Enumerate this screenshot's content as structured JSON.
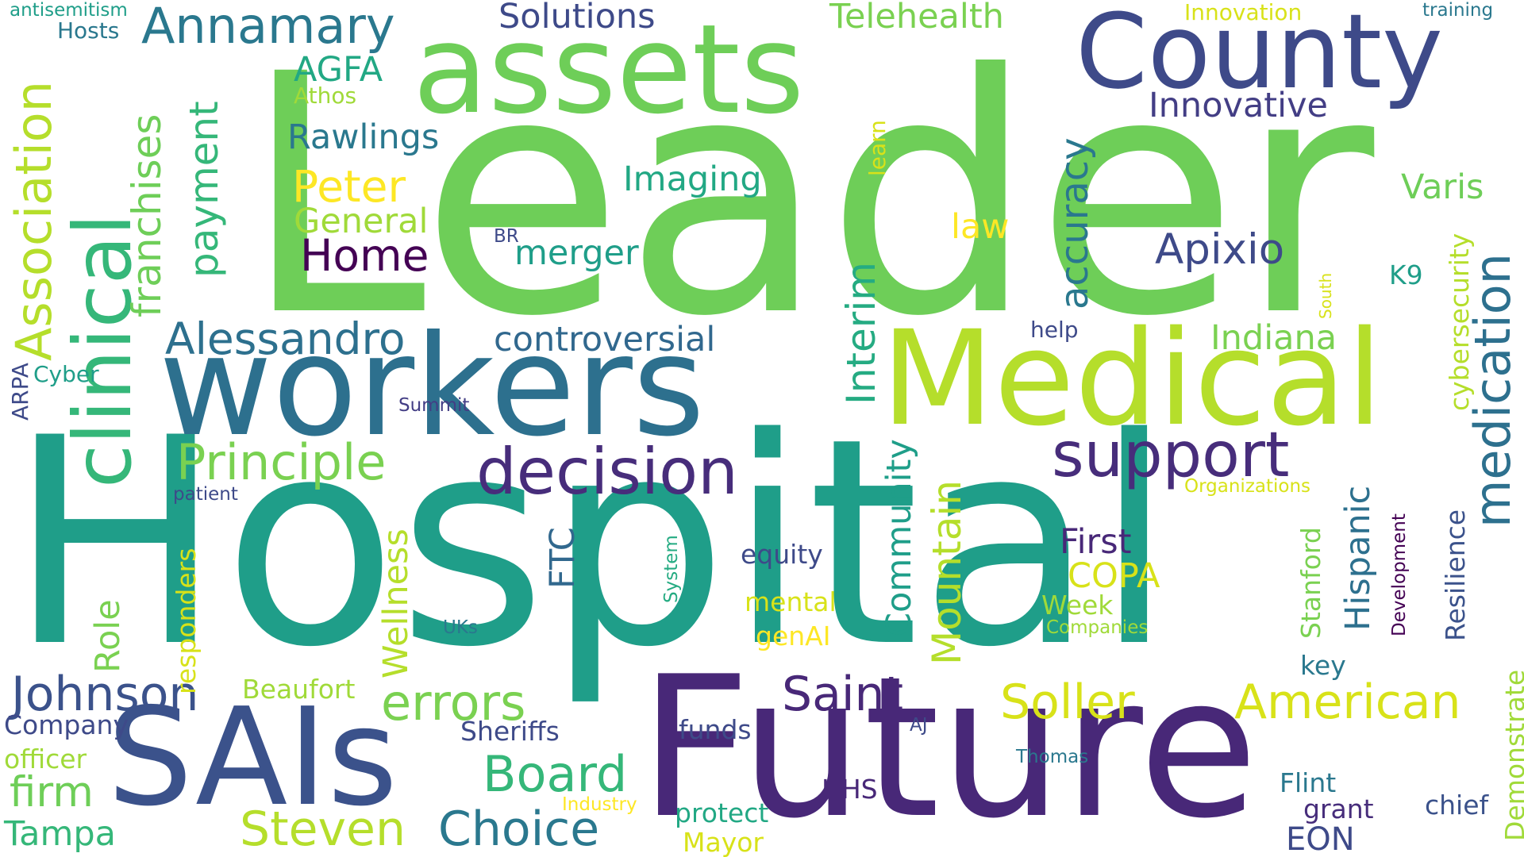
{
  "words": [
    {
      "text": "Leader",
      "color": "#6ece58",
      "vertical": false
    },
    {
      "text": "Hospital",
      "color": "#1f9e89",
      "vertical": false
    },
    {
      "text": "Future",
      "color": "#482878",
      "vertical": false
    },
    {
      "text": "workers",
      "color": "#2d708e",
      "vertical": false
    },
    {
      "text": "Medical",
      "color": "#b5de2b",
      "vertical": false
    },
    {
      "text": "assets",
      "color": "#6ece58",
      "vertical": false
    },
    {
      "text": "County",
      "color": "#3e4a89",
      "vertical": false
    },
    {
      "text": "SAIs",
      "color": "#3b528b",
      "vertical": false
    },
    {
      "text": "clinical",
      "color": "#35b779",
      "vertical": true
    },
    {
      "text": "decision",
      "color": "#472d7b",
      "vertical": false
    },
    {
      "text": "support",
      "color": "#472d7b",
      "vertical": false
    },
    {
      "text": "Annamary",
      "color": "#2a788e",
      "vertical": false
    },
    {
      "text": "Association",
      "color": "#b5de2b",
      "vertical": true
    },
    {
      "text": "franchises",
      "color": "#6ece58",
      "vertical": true
    },
    {
      "text": "payment",
      "color": "#35b779",
      "vertical": true
    },
    {
      "text": "Principle",
      "color": "#7ad151",
      "vertical": false
    },
    {
      "text": "Alessandro",
      "color": "#2d708e",
      "vertical": false
    },
    {
      "text": "controversial",
      "color": "#31688e",
      "vertical": false
    },
    {
      "text": "Johnson",
      "color": "#3b528b",
      "vertical": false
    },
    {
      "text": "errors",
      "color": "#7ad151",
      "vertical": false
    },
    {
      "text": "Board",
      "color": "#35b779",
      "vertical": false
    },
    {
      "text": "Choice",
      "color": "#2a788e",
      "vertical": false
    },
    {
      "text": "Steven",
      "color": "#b5de2b",
      "vertical": false
    },
    {
      "text": "Saint",
      "color": "#482878",
      "vertical": false
    },
    {
      "text": "Soller",
      "color": "#d8e219",
      "vertical": false
    },
    {
      "text": "American",
      "color": "#d8e219",
      "vertical": false
    },
    {
      "text": "medication",
      "color": "#2d708e",
      "vertical": true
    },
    {
      "text": "accuracy",
      "color": "#2a788e",
      "vertical": true
    },
    {
      "text": "Interim",
      "color": "#25ab82",
      "vertical": true
    },
    {
      "text": "Apixio",
      "color": "#3e4a89",
      "vertical": false
    },
    {
      "text": "Indiana",
      "color": "#7ad151",
      "vertical": false
    },
    {
      "text": "Innovative",
      "color": "#433e85",
      "vertical": false
    },
    {
      "text": "Peter",
      "color": "#fde725",
      "vertical": false
    },
    {
      "text": "Home",
      "color": "#440154",
      "vertical": false
    },
    {
      "text": "General",
      "color": "#a0da39",
      "vertical": false
    },
    {
      "text": "Rawlings",
      "color": "#2a788e",
      "vertical": false
    },
    {
      "text": "AGFA",
      "color": "#22a884",
      "vertical": false
    },
    {
      "text": "Imaging",
      "color": "#22a884",
      "vertical": false
    },
    {
      "text": "merger",
      "color": "#1f9e89",
      "vertical": false
    },
    {
      "text": "Solutions",
      "color": "#3e4a89",
      "vertical": false
    },
    {
      "text": "Telehealth",
      "color": "#7ad151",
      "vertical": false
    },
    {
      "text": "Mountain",
      "color": "#b5de2b",
      "vertical": true
    },
    {
      "text": "Community",
      "color": "#1f9e89",
      "vertical": true
    },
    {
      "text": "First",
      "color": "#482878",
      "vertical": false
    },
    {
      "text": "COPA",
      "color": "#d8e219",
      "vertical": false
    },
    {
      "text": "Hispanic",
      "color": "#2d708e",
      "vertical": true
    },
    {
      "text": "Stanford",
      "color": "#7ad151",
      "vertical": true
    },
    {
      "text": "Resilience",
      "color": "#3b528b",
      "vertical": true
    },
    {
      "text": "Development",
      "color": "#440154",
      "vertical": true
    },
    {
      "text": "Varis",
      "color": "#6ece58",
      "vertical": false
    },
    {
      "text": "cybersecurity",
      "color": "#b5de2b",
      "vertical": true
    },
    {
      "text": "K9",
      "color": "#1f9e89",
      "vertical": false
    },
    {
      "text": "FTC",
      "color": "#31688e",
      "vertical": true
    },
    {
      "text": "equity",
      "color": "#3e4a89",
      "vertical": false
    },
    {
      "text": "mental",
      "color": "#d8e219",
      "vertical": false
    },
    {
      "text": "genAI",
      "color": "#fde725",
      "vertical": false
    },
    {
      "text": "Week",
      "color": "#a0da39",
      "vertical": false
    },
    {
      "text": "Role",
      "color": "#7ad151",
      "vertical": true
    },
    {
      "text": "Wellness",
      "color": "#b5de2b",
      "vertical": true
    },
    {
      "text": "responders",
      "color": "#d8e219",
      "vertical": true
    },
    {
      "text": "Beaufort",
      "color": "#a0da39",
      "vertical": false
    },
    {
      "text": "firm",
      "color": "#6ece58",
      "vertical": false
    },
    {
      "text": "Tampa",
      "color": "#35b779",
      "vertical": false
    },
    {
      "text": "Company",
      "color": "#3e4a89",
      "vertical": false
    },
    {
      "text": "officer",
      "color": "#a0da39",
      "vertical": false
    },
    {
      "text": "Sheriffs",
      "color": "#3e4a89",
      "vertical": false
    },
    {
      "text": "funds",
      "color": "#3e4a89",
      "vertical": false
    },
    {
      "text": "HHS",
      "color": "#482878",
      "vertical": false
    },
    {
      "text": "protect",
      "color": "#22a884",
      "vertical": false
    },
    {
      "text": "Mayor",
      "color": "#d8e219",
      "vertical": false
    },
    {
      "text": "Flint",
      "color": "#2a788e",
      "vertical": false
    },
    {
      "text": "grant",
      "color": "#472d7b",
      "vertical": false
    },
    {
      "text": "chief",
      "color": "#3b528b",
      "vertical": false
    },
    {
      "text": "EON",
      "color": "#3e4a89",
      "vertical": false
    },
    {
      "text": "Demonstrate",
      "color": "#a0da39",
      "vertical": true
    },
    {
      "text": "key",
      "color": "#2a788e",
      "vertical": false
    },
    {
      "text": "Thomas",
      "color": "#2a788e",
      "vertical": false
    },
    {
      "text": "AJ",
      "color": "#3e4a89",
      "vertical": false
    },
    {
      "text": "Industry",
      "color": "#fde725",
      "vertical": false
    },
    {
      "text": "Companies",
      "color": "#a0da39",
      "vertical": false
    },
    {
      "text": "Organizations",
      "color": "#d8e219",
      "vertical": false
    },
    {
      "text": "UKs",
      "color": "#2a788e",
      "vertical": false
    },
    {
      "text": "System",
      "color": "#25ab82",
      "vertical": true
    },
    {
      "text": "patient",
      "color": "#3e4a89",
      "vertical": false
    },
    {
      "text": "Summit",
      "color": "#433e85",
      "vertical": false
    },
    {
      "text": "Cyber",
      "color": "#1f9e89",
      "vertical": false
    },
    {
      "text": "ARPA",
      "color": "#3e4a89",
      "vertical": true
    },
    {
      "text": "BR",
      "color": "#3e4a89",
      "vertical": false
    },
    {
      "text": "law",
      "color": "#fde725",
      "vertical": false
    },
    {
      "text": "learn",
      "color": "#d8e219",
      "vertical": true
    },
    {
      "text": "Athos",
      "color": "#a0da39",
      "vertical": false
    },
    {
      "text": "Hosts",
      "color": "#2a788e",
      "vertical": false
    },
    {
      "text": "antisemitism",
      "color": "#1f9e89",
      "vertical": false
    },
    {
      "text": "Innovation",
      "color": "#d8e219",
      "vertical": false
    },
    {
      "text": "training",
      "color": "#2a788e",
      "vertical": false
    },
    {
      "text": "help",
      "color": "#3e4a89",
      "vertical": false
    },
    {
      "text": "South",
      "color": "#d8e219",
      "vertical": true
    }
  ]
}
